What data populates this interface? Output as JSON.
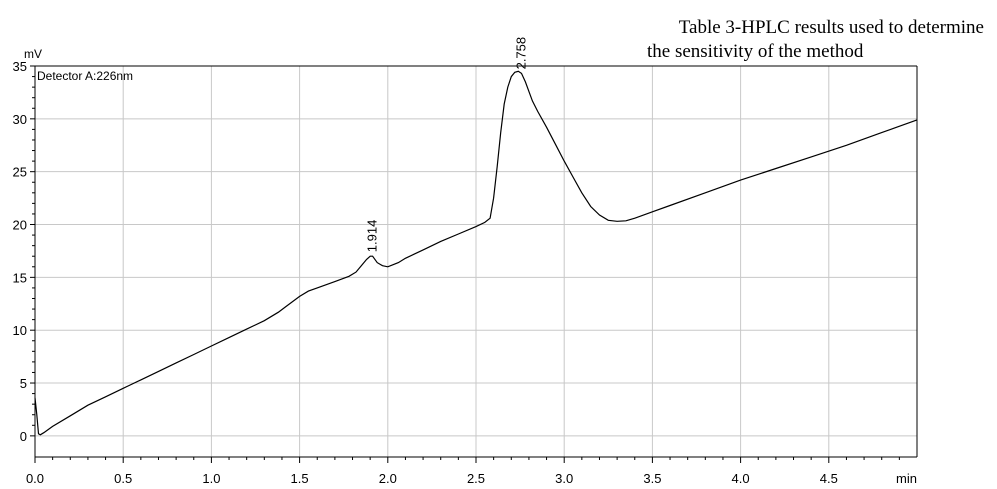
{
  "caption": {
    "line1": "Table 3-HPLC results used to determine",
    "line2": "the sensitivity of the method"
  },
  "chart_data": {
    "type": "line",
    "detector_label": "Detector A:226nm",
    "xlabel": "min",
    "ylabel": "mV",
    "xlim": [
      0,
      5.0
    ],
    "ylim": [
      -2,
      35
    ],
    "xticks": [
      0.0,
      0.5,
      1.0,
      1.5,
      2.0,
      2.5,
      3.0,
      3.5,
      4.0,
      4.5
    ],
    "xtick_labels": [
      "0.0",
      "0.5",
      "1.0",
      "1.5",
      "2.0",
      "2.5",
      "3.0",
      "3.5",
      "4.0",
      "4.5"
    ],
    "yticks": [
      0,
      5,
      10,
      15,
      20,
      25,
      30,
      35
    ],
    "ytick_labels": [
      "0",
      "5",
      "10",
      "15",
      "20",
      "25",
      "30",
      "35"
    ],
    "grid": true,
    "series": [
      {
        "x": [
          0.0,
          0.01,
          0.02,
          0.03,
          0.05,
          0.1,
          0.2,
          0.3,
          0.4,
          0.5,
          0.6,
          0.7,
          0.8,
          0.9,
          1.0,
          1.1,
          1.2,
          1.3,
          1.38,
          1.42,
          1.5,
          1.55,
          1.6,
          1.7,
          1.78,
          1.82,
          1.85,
          1.88,
          1.9,
          1.914,
          1.94,
          1.97,
          2.0,
          2.03,
          2.06,
          2.1,
          2.15,
          2.2,
          2.3,
          2.4,
          2.5,
          2.55,
          2.58,
          2.6,
          2.62,
          2.64,
          2.66,
          2.68,
          2.7,
          2.72,
          2.74,
          2.758,
          2.78,
          2.8,
          2.82,
          2.85,
          2.9,
          2.95,
          3.0,
          3.05,
          3.1,
          3.15,
          3.2,
          3.25,
          3.3,
          3.35,
          3.4,
          3.5,
          3.6,
          3.8,
          4.0,
          4.2,
          4.4,
          4.6,
          4.8,
          5.0
        ],
        "y": [
          3.6,
          2.0,
          0.2,
          0.1,
          0.3,
          0.9,
          1.9,
          2.9,
          3.7,
          4.5,
          5.3,
          6.1,
          6.9,
          7.7,
          8.5,
          9.3,
          10.1,
          10.9,
          11.7,
          12.2,
          13.2,
          13.7,
          14.0,
          14.6,
          15.1,
          15.5,
          16.1,
          16.7,
          17.0,
          17.0,
          16.4,
          16.1,
          16.0,
          16.2,
          16.4,
          16.8,
          17.2,
          17.6,
          18.4,
          19.1,
          19.8,
          20.2,
          20.6,
          22.5,
          25.5,
          28.7,
          31.4,
          33.0,
          34.0,
          34.4,
          34.5,
          34.3,
          33.5,
          32.6,
          31.7,
          30.7,
          29.2,
          27.6,
          26.0,
          24.5,
          23.0,
          21.7,
          20.9,
          20.4,
          20.3,
          20.35,
          20.6,
          21.2,
          21.8,
          23.0,
          24.2,
          25.3,
          26.4,
          27.5,
          28.7,
          29.9
        ]
      }
    ],
    "peaks": [
      {
        "label": "1.914",
        "x": 1.914,
        "y": 17.0
      },
      {
        "label": "2.758",
        "x": 2.758,
        "y": 34.3
      }
    ]
  }
}
